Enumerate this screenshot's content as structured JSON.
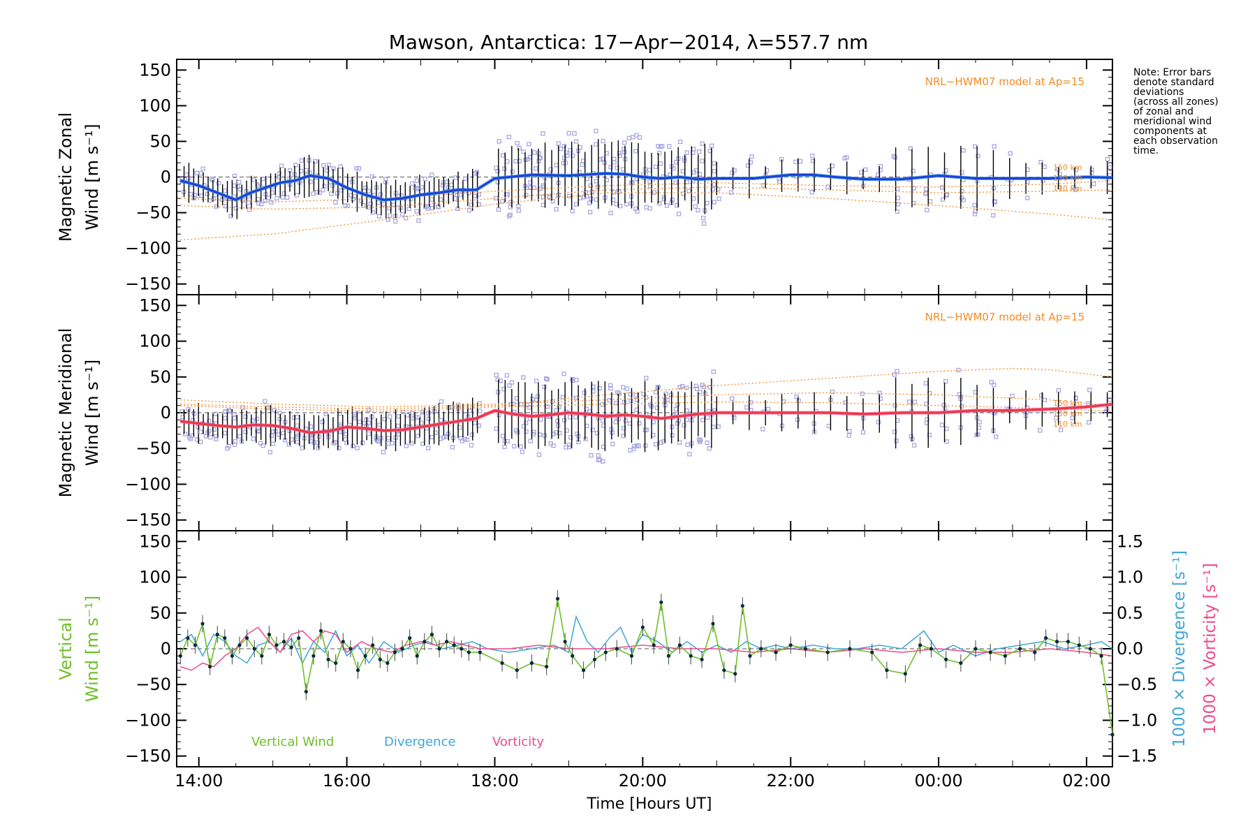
{
  "title": "Mawson, Antarctica: 17−Apr−2014, λ=557.7 nm",
  "note": [
    "Note: Error bars",
    "denote standard",
    "deviations",
    "(across all zones)",
    "of zonal and",
    "meridional wind",
    "components at",
    "each observation",
    "time."
  ],
  "colors": {
    "zonal": "#1f3fd6",
    "zonal_light": "#2f96e8",
    "meridional": "#e8384a",
    "meridional_light": "#ff5a8a",
    "model": "#f28c28",
    "vertical": "#6fbf2a",
    "divergence": "#3fa6d6",
    "vorticity": "#ee4a8a",
    "zone_points": "#a8a8e0",
    "error_bars": "#000000"
  },
  "chart_data": {
    "type": "line",
    "x_axis": {
      "label": "Time [Hours UT]",
      "range_hours": [
        13.7,
        26.35
      ],
      "ticks": [
        {
          "hour": 14,
          "label": "14:00"
        },
        {
          "hour": 16,
          "label": "16:00"
        },
        {
          "hour": 18,
          "label": "18:00"
        },
        {
          "hour": 20,
          "label": "20:00"
        },
        {
          "hour": 22,
          "label": "22:00"
        },
        {
          "hour": 24,
          "label": "00:00"
        },
        {
          "hour": 26,
          "label": "02:00"
        }
      ]
    },
    "panels": [
      {
        "id": "zonal",
        "ylabel": [
          "Magnetic Zonal",
          "Wind [m s⁻¹]"
        ],
        "ylim": [
          -165,
          165
        ],
        "yticks": [
          150,
          100,
          50,
          0,
          -50,
          -100,
          -150
        ],
        "model_label": "NRL−HWM07 model at Ap=15",
        "model_alt_labels": [
          "150 km",
          "130 km",
          "110 km"
        ],
        "series": [
          {
            "time": [
              13.75,
              14.0,
              14.25,
              14.5,
              14.7,
              14.9,
              15.1,
              15.3,
              15.5,
              15.75,
              16.0,
              16.25,
              16.5,
              16.75,
              17.0,
              17.25,
              17.5,
              17.75,
              18.0,
              18.5,
              19.0,
              19.5,
              19.75,
              20.0,
              20.25,
              20.5,
              20.75,
              21.0,
              21.5,
              22.0,
              22.3,
              22.6,
              23.0,
              23.5,
              24.0,
              24.5,
              25.0,
              25.5,
              26.0,
              26.35
            ],
            "wind": [
              -5,
              -12,
              -22,
              -32,
              -22,
              -15,
              -8,
              -5,
              2,
              -2,
              -15,
              -25,
              -32,
              -30,
              -25,
              -22,
              -18,
              -18,
              -2,
              3,
              2,
              5,
              4,
              0,
              -2,
              0,
              -3,
              -2,
              -2,
              3,
              3,
              0,
              -3,
              -3,
              2,
              -2,
              -2,
              -2,
              0,
              -1
            ]
          }
        ],
        "model": [
          {
            "time": [
              13.75,
              15.0,
              16.5,
              18.0,
              19.5,
              21.0,
              22.5,
              24.0,
              25.5,
              26.35
            ],
            "wind": [
              -88,
              -80,
              -60,
              -38,
              -22,
              -22,
              -30,
              -40,
              -52,
              -60
            ]
          },
          {
            "time": [
              13.75,
              15.0,
              16.5,
              18.0,
              19.5,
              21.0,
              22.5,
              24.0,
              25.5,
              26.35
            ],
            "wind": [
              -40,
              -45,
              -42,
              -30,
              -18,
              -14,
              -18,
              -22,
              -20,
              -18
            ]
          },
          {
            "time": [
              13.75,
              15.0,
              16.5,
              18.0,
              19.5,
              21.0,
              22.5,
              24.0,
              25.5,
              26.35
            ],
            "wind": [
              -30,
              -35,
              -30,
              -20,
              -12,
              -8,
              -12,
              -14,
              -10,
              -5
            ]
          }
        ]
      },
      {
        "id": "meridional",
        "ylabel": [
          "Magnetic Meridional",
          "Wind [m s⁻¹]"
        ],
        "ylim": [
          -165,
          165
        ],
        "yticks": [
          150,
          100,
          50,
          0,
          -50,
          -100,
          -150
        ],
        "model_label": "NRL−HWM07 model at Ap=15",
        "model_alt_labels": [
          "150 km",
          "130 km",
          "110 km"
        ],
        "series": [
          {
            "time": [
              13.75,
              14.0,
              14.25,
              14.5,
              14.75,
              15.0,
              15.25,
              15.5,
              15.75,
              16.0,
              16.25,
              16.5,
              16.75,
              17.0,
              17.25,
              17.5,
              17.75,
              18.0,
              18.25,
              18.5,
              18.75,
              19.0,
              19.25,
              19.5,
              19.75,
              20.0,
              20.25,
              20.5,
              20.75,
              21.0,
              21.5,
              22.0,
              22.5,
              23.0,
              23.5,
              24.0,
              24.5,
              25.0,
              25.5,
              26.0,
              26.35
            ],
            "wind": [
              -12,
              -15,
              -18,
              -20,
              -17,
              -18,
              -22,
              -28,
              -26,
              -20,
              -22,
              -25,
              -24,
              -20,
              -16,
              -12,
              -8,
              3,
              -2,
              -5,
              -3,
              0,
              -2,
              -5,
              -3,
              -5,
              -8,
              -5,
              -2,
              0,
              0,
              0,
              0,
              -2,
              0,
              0,
              3,
              3,
              5,
              8,
              12
            ]
          }
        ],
        "model": [
          {
            "time": [
              13.75,
              15.0,
              16.5,
              18.0,
              19.5,
              21.0,
              22.5,
              24.0,
              25.0,
              25.5,
              26.35
            ],
            "wind": [
              12,
              8,
              5,
              10,
              25,
              38,
              48,
              58,
              62,
              60,
              50
            ]
          },
          {
            "time": [
              13.75,
              15.0,
              16.5,
              18.0,
              19.5,
              21.0,
              22.5,
              24.0,
              25.5,
              26.35
            ],
            "wind": [
              18,
              12,
              8,
              12,
              18,
              25,
              28,
              25,
              18,
              10
            ]
          },
          {
            "time": [
              13.75,
              15.0,
              16.5,
              18.0,
              19.5,
              21.0,
              22.5,
              24.0,
              25.5,
              26.35
            ],
            "wind": [
              10,
              5,
              2,
              8,
              12,
              15,
              14,
              10,
              6,
              2
            ]
          }
        ]
      },
      {
        "id": "vertical",
        "ylabel_green": [
          "Vertical",
          "Wind [m s⁻¹]"
        ],
        "ylim": [
          -165,
          165
        ],
        "yticks": [
          150,
          100,
          50,
          0,
          -50,
          -100,
          -150
        ],
        "y2lim": [
          -1.65,
          1.65
        ],
        "y2ticks": [
          "1.5",
          "1.0",
          "0.5",
          "0.0",
          "−0.5",
          "−1.0",
          "−1.5"
        ],
        "y2label_blue": "1000 × Divergence [s⁻¹]",
        "y2label_pink": "1000 × Vorticity [s⁻¹]",
        "legend": [
          "Vertical Wind",
          "Divergence",
          "Vorticity"
        ],
        "vertical_wind": {
          "time": [
            13.75,
            13.85,
            13.95,
            14.05,
            14.15,
            14.25,
            14.35,
            14.45,
            14.55,
            14.65,
            14.75,
            14.85,
            14.95,
            15.05,
            15.15,
            15.25,
            15.35,
            15.45,
            15.55,
            15.65,
            15.75,
            15.85,
            15.95,
            16.05,
            16.15,
            16.25,
            16.35,
            16.45,
            16.55,
            16.65,
            16.75,
            16.85,
            16.95,
            17.05,
            17.15,
            17.25,
            17.35,
            17.45,
            17.55,
            17.65,
            17.8,
            18.1,
            18.3,
            18.5,
            18.7,
            18.85,
            18.95,
            19.05,
            19.2,
            19.35,
            19.5,
            19.65,
            19.85,
            20.0,
            20.15,
            20.25,
            20.35,
            20.5,
            20.65,
            20.8,
            20.95,
            21.1,
            21.25,
            21.35,
            21.45,
            21.6,
            21.8,
            22.0,
            22.2,
            22.5,
            22.8,
            23.1,
            23.3,
            23.55,
            23.75,
            23.9,
            24.1,
            24.3,
            24.5,
            24.7,
            24.9,
            25.1,
            25.3,
            25.45,
            25.6,
            25.75,
            25.9,
            26.05,
            26.2,
            26.35
          ],
          "wind": [
            -10,
            15,
            5,
            35,
            -25,
            20,
            15,
            -10,
            5,
            15,
            0,
            -10,
            20,
            5,
            10,
            2,
            15,
            -60,
            -10,
            25,
            -15,
            -20,
            10,
            0,
            -30,
            -10,
            5,
            -15,
            -20,
            -5,
            0,
            15,
            -10,
            10,
            20,
            0,
            10,
            5,
            0,
            -5,
            -5,
            -20,
            -30,
            -20,
            -25,
            70,
            10,
            -10,
            -30,
            -15,
            -5,
            0,
            -10,
            30,
            5,
            65,
            -10,
            5,
            -10,
            -15,
            35,
            -30,
            -35,
            60,
            -10,
            0,
            -5,
            5,
            0,
            -5,
            0,
            -5,
            -30,
            -35,
            5,
            0,
            -15,
            -20,
            0,
            -5,
            -10,
            0,
            -5,
            15,
            10,
            10,
            5,
            0,
            -10,
            -120
          ]
        },
        "divergence": {
          "time": [
            13.75,
            13.9,
            14.05,
            14.2,
            14.35,
            14.5,
            14.65,
            14.8,
            14.95,
            15.1,
            15.25,
            15.4,
            15.55,
            15.7,
            15.85,
            16.0,
            16.15,
            16.3,
            16.5,
            16.7,
            16.9,
            17.1,
            17.3,
            17.5,
            17.7,
            17.9,
            18.2,
            18.5,
            18.8,
            19.0,
            19.1,
            19.25,
            19.4,
            19.55,
            19.7,
            19.85,
            20.0,
            20.2,
            20.4,
            20.6,
            20.8,
            21.0,
            21.2,
            21.4,
            21.6,
            21.8,
            22.0,
            22.3,
            22.6,
            22.9,
            23.2,
            23.5,
            23.8,
            24.0,
            24.2,
            24.5,
            24.8,
            25.1,
            25.4,
            25.7,
            26.0,
            26.2,
            26.35
          ],
          "div": [
            0.1,
            0.2,
            -0.1,
            0.2,
            0.1,
            -0.1,
            -0.2,
            0.05,
            0.1,
            -0.05,
            0.15,
            -0.2,
            0.1,
            -0.05,
            0.25,
            -0.1,
            0.05,
            -0.2,
            0.1,
            -0.05,
            0.05,
            0.1,
            0.0,
            0.05,
            0.1,
            0.0,
            -0.05,
            0.0,
            0.05,
            -0.05,
            0.45,
            0.1,
            -0.05,
            0.15,
            0.3,
            -0.05,
            0.2,
            0.1,
            -0.05,
            0.1,
            -0.05,
            0.05,
            -0.05,
            0.1,
            0.0,
            0.05,
            0.0,
            0.05,
            0.0,
            0.0,
            0.05,
            0.0,
            0.25,
            -0.05,
            0.05,
            -0.1,
            0.0,
            0.05,
            0.1,
            0.0,
            0.05,
            0.1,
            0.0
          ]
        },
        "vorticity": {
          "time": [
            13.75,
            13.9,
            14.05,
            14.2,
            14.35,
            14.5,
            14.65,
            14.8,
            14.95,
            15.1,
            15.25,
            15.4,
            15.55,
            15.7,
            15.85,
            16.0,
            16.2,
            16.4,
            16.6,
            16.8,
            17.0,
            17.2,
            17.4,
            17.6,
            17.8,
            18.2,
            18.6,
            19.0,
            19.5,
            20.0,
            20.5,
            21.0,
            21.5,
            22.0,
            22.5,
            23.0,
            23.5,
            24.0,
            24.5,
            25.0,
            25.5,
            26.0,
            26.35
          ],
          "vort": [
            -0.25,
            -0.3,
            -0.2,
            -0.25,
            -0.1,
            0.0,
            0.2,
            0.3,
            0.1,
            -0.05,
            0.2,
            0.25,
            0.1,
            0.25,
            0.2,
            -0.05,
            0.1,
            0.0,
            -0.05,
            0.05,
            0.1,
            0.05,
            0.1,
            0.05,
            0.0,
            0.0,
            0.05,
            0.0,
            0.0,
            0.05,
            0.0,
            0.0,
            -0.05,
            0.0,
            -0.05,
            0.0,
            -0.05,
            0.0,
            -0.05,
            -0.05,
            0.0,
            -0.05,
            -0.1
          ]
        }
      }
    ]
  }
}
